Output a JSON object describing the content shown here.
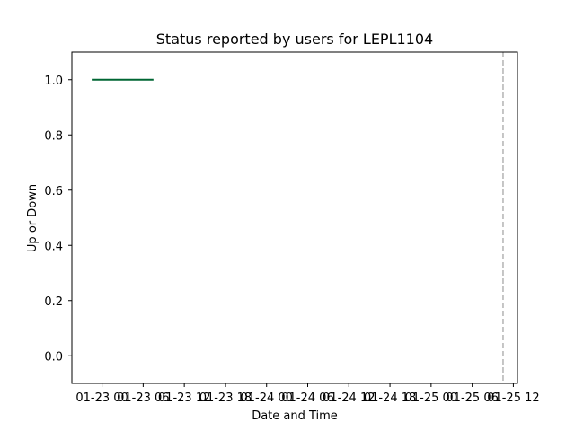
{
  "chart_data": {
    "type": "line",
    "title": "Status reported by users for LEPL1104",
    "xlabel": "Date and Time",
    "ylabel": "Up or Down",
    "x_tick_labels": [
      "01-23 00",
      "01-23 06",
      "01-23 12",
      "01-23 18",
      "01-24 00",
      "01-24 06",
      "01-24 12",
      "01-24 18",
      "01-25 00",
      "01-25 06",
      "01-25 12"
    ],
    "y_ticks": [
      0.0,
      0.2,
      0.4,
      0.6,
      0.8,
      1.0
    ],
    "y_tick_labels": [
      "0.0",
      "0.2",
      "0.4",
      "0.6",
      "0.8",
      "1.0"
    ],
    "ylim": [
      -0.1,
      1.1
    ],
    "xlim_hours": [
      -4.4,
      60.6
    ],
    "grid": false,
    "series": [
      {
        "color": "#006633",
        "x_hours": [
          -1.5,
          7.5
        ],
        "y": [
          1,
          1
        ]
      }
    ],
    "reference_line": {
      "x_hours": 58.5,
      "style": "dashed",
      "color": "#b3b3b3"
    }
  }
}
